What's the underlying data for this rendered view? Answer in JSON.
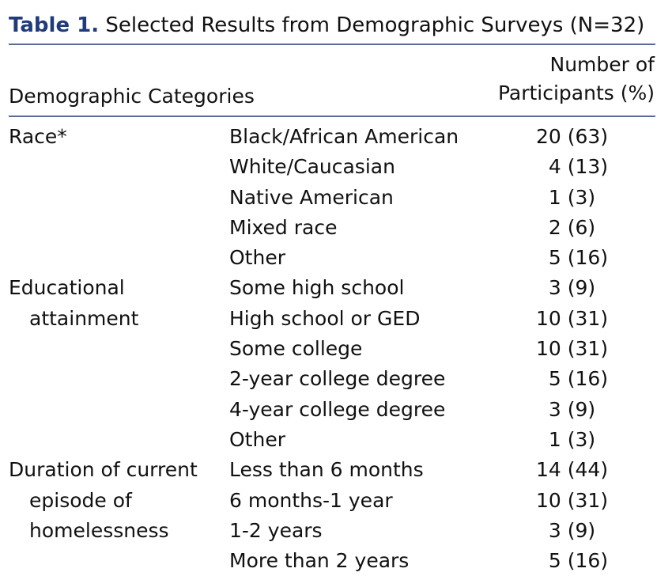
{
  "caption": {
    "label": "Table 1.",
    "title": "Selected Results from Demographic Surveys (N=32)"
  },
  "headers": {
    "categories": "Demographic Categories",
    "count_line1": "Number of",
    "count_line2": "Participants (%)"
  },
  "groups": [
    {
      "category_lines": [
        "Race*"
      ],
      "rows": [
        {
          "label": "Black/African American",
          "value": "20 (63)"
        },
        {
          "label": "White/Caucasian",
          "value": "4 (13)"
        },
        {
          "label": "Native American",
          "value": "1 (3)"
        },
        {
          "label": "Mixed race",
          "value": "2 (6)"
        },
        {
          "label": "Other",
          "value": "5 (16)"
        }
      ]
    },
    {
      "category_lines": [
        "Educational",
        "attainment"
      ],
      "rows": [
        {
          "label": "Some high school",
          "value": "3 (9)"
        },
        {
          "label": "High school or GED",
          "value": "10 (31)"
        },
        {
          "label": "Some college",
          "value": "10 (31)"
        },
        {
          "label": "2-year college degree",
          "value": "5 (16)"
        },
        {
          "label": "4-year college degree",
          "value": "3 (9)"
        },
        {
          "label": "Other",
          "value": "1 (3)"
        }
      ]
    },
    {
      "category_lines": [
        "Duration of current",
        "episode of",
        "homelessness"
      ],
      "rows": [
        {
          "label": "Less than 6 months",
          "value": "14 (44)"
        },
        {
          "label": "6 months-1 year",
          "value": "10 (31)"
        },
        {
          "label": "1-2 years",
          "value": "3 (9)"
        },
        {
          "label": "More than 2 years",
          "value": "5 (16)"
        }
      ]
    }
  ]
}
